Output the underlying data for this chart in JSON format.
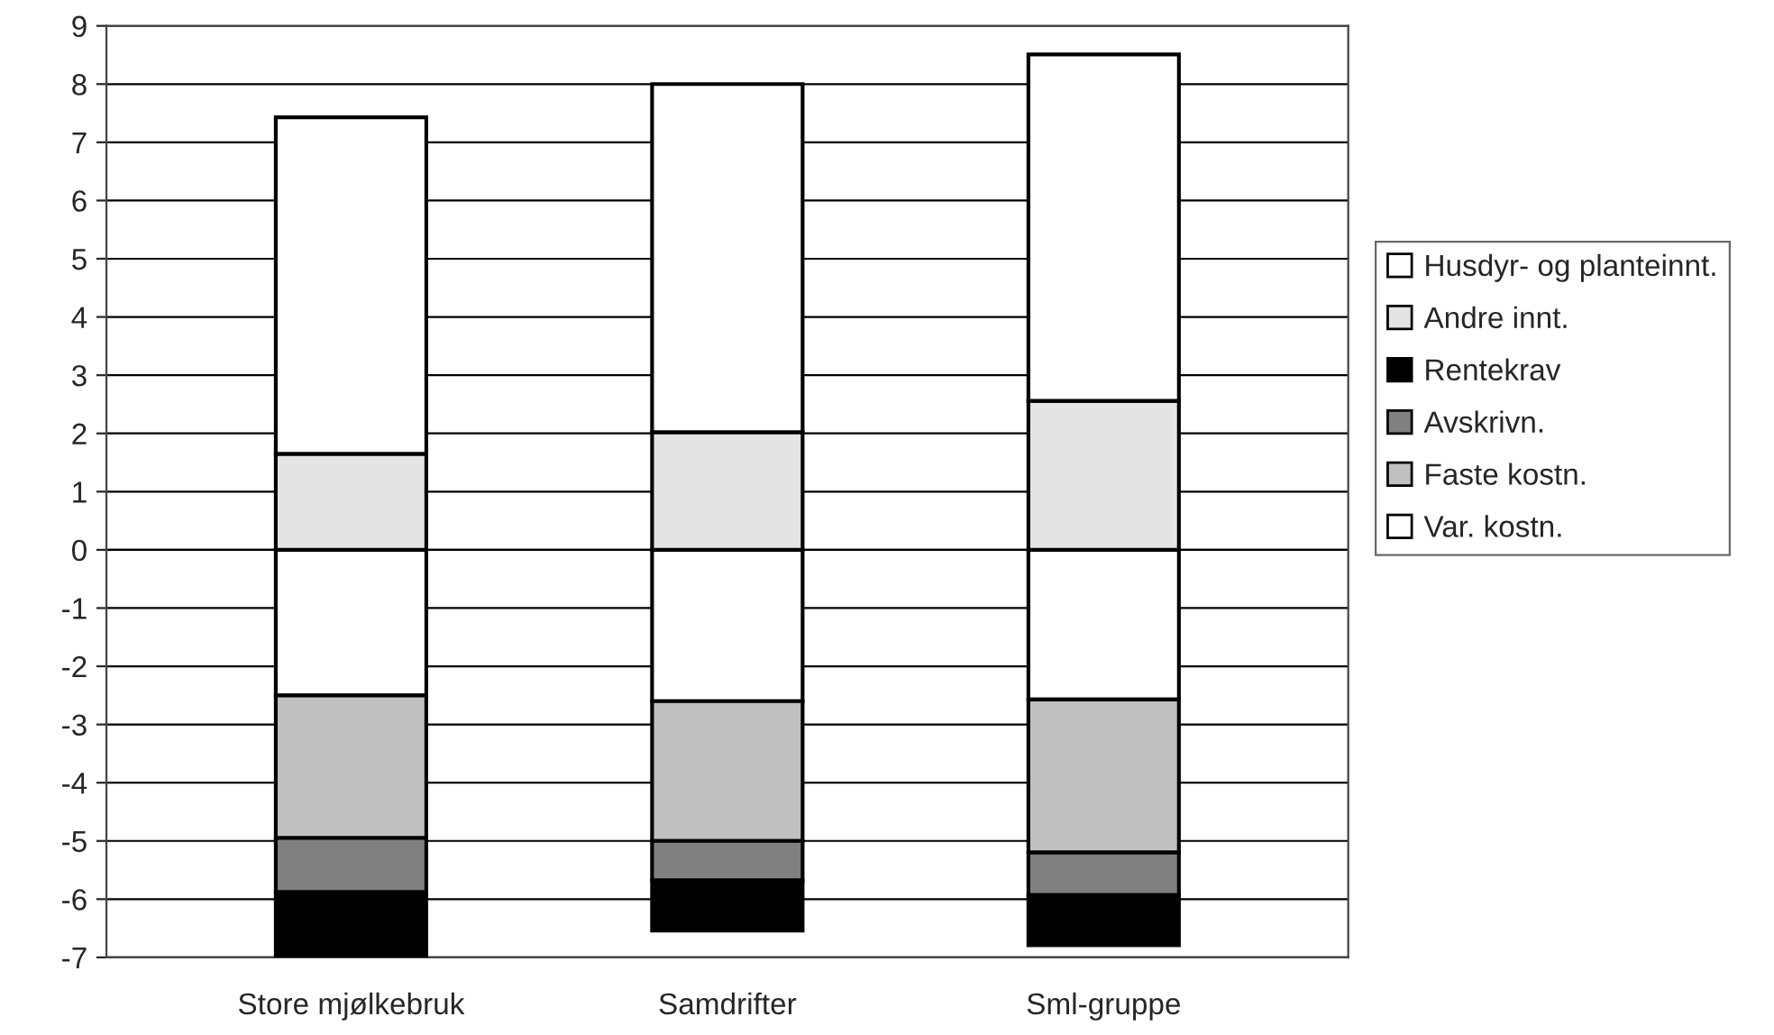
{
  "chart_data": {
    "type": "bar",
    "stacked": true,
    "categories": [
      "Store mjølkebruk",
      "Samdrifter",
      "Sml-gruppe"
    ],
    "series": [
      {
        "name": "Var. kostn.",
        "color": "#ffffff",
        "values": [
          -2.5,
          -2.6,
          -2.57
        ]
      },
      {
        "name": "Faste kostn.",
        "color": "#c0c0c0",
        "values": [
          -2.45,
          -2.4,
          -2.63
        ]
      },
      {
        "name": "Avskrivn.",
        "color": "#808080",
        "values": [
          -0.93,
          -0.68,
          -0.73
        ]
      },
      {
        "name": "Rentekrav",
        "color": "#000000",
        "values": [
          -1.1,
          -0.86,
          -0.86
        ]
      },
      {
        "name": "Andre innt.",
        "color": "#e4e4e4",
        "values": [
          1.65,
          2.02,
          2.56
        ]
      },
      {
        "name": "Husdyr- og planteinnt.",
        "color": "#ffffff",
        "values": [
          5.78,
          5.98,
          5.95
        ]
      }
    ],
    "ylim": [
      -7,
      9
    ],
    "yticks": [
      -7,
      -6,
      -5,
      -4,
      -3,
      -2,
      -1,
      0,
      1,
      2,
      3,
      4,
      5,
      6,
      7,
      8,
      9
    ],
    "grid": "y",
    "legend": "right"
  }
}
